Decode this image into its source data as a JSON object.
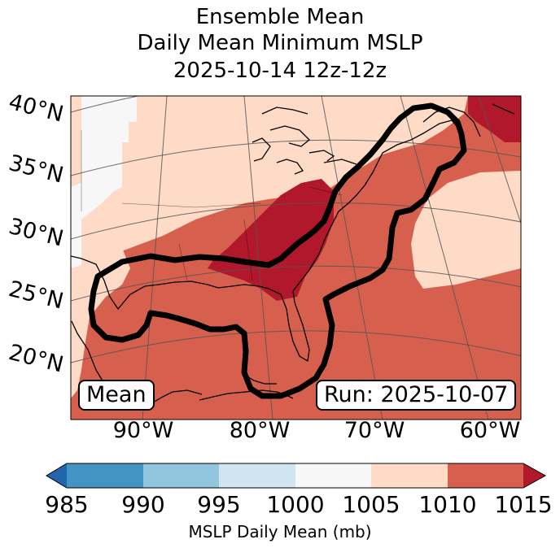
{
  "title": {
    "line1": "Ensemble Mean",
    "line2": "Daily Mean Minimum MSLP",
    "line3": "2025-10-14 12z-12z"
  },
  "map": {
    "lat_labels": [
      "40°N",
      "35°N",
      "30°N",
      "25°N",
      "20°N"
    ],
    "lon_labels": [
      "90°W",
      "80°W",
      "70°W",
      "60°W"
    ],
    "mean_box": "Mean",
    "run_box": "Run: 2025-10-07",
    "contour_color": "#000000"
  },
  "colorbar": {
    "ticks": [
      "985",
      "990",
      "995",
      "1000",
      "1005",
      "1010",
      "1015"
    ],
    "colors": [
      "#2166ac",
      "#4393c3",
      "#92c5de",
      "#d1e5f0",
      "#f7f7f7",
      "#fddbc7",
      "#d6604d",
      "#b2182b"
    ],
    "label": "MSLP Daily Mean (mb)"
  }
}
